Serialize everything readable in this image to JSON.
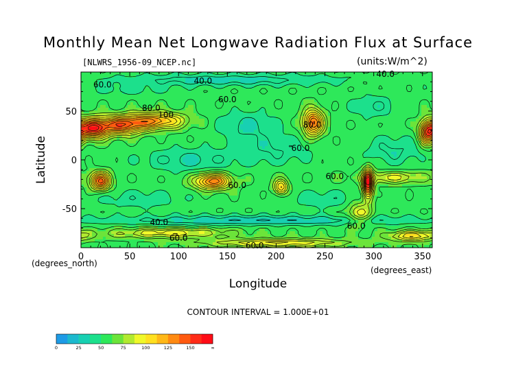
{
  "chart_data": {
    "type": "heatmap",
    "title": "Monthly Mean Net Longwave Radiation Flux at Surface",
    "source_file": "[NLWRS_1956-09_NCEP.nc]",
    "units": "(units:W/m^2)",
    "xlabel": "Longitude",
    "ylabel": "Latitude",
    "x_units_note": "(degrees_east)",
    "y_units_note": "(degrees_north)",
    "xlim": [
      0,
      360
    ],
    "ylim": [
      -90,
      90
    ],
    "x_ticks": [
      0,
      50,
      100,
      150,
      200,
      250,
      300,
      350
    ],
    "y_ticks": [
      -50,
      0,
      50
    ],
    "contour_interval_text": "CONTOUR INTERVAL = 1.000E+01",
    "contour_labels": [
      {
        "text": "60.0",
        "lon": 22,
        "lat": 77
      },
      {
        "text": "40.0",
        "lon": 125,
        "lat": 81
      },
      {
        "text": "60.0",
        "lon": 150,
        "lat": 62
      },
      {
        "text": "80.0",
        "lon": 72,
        "lat": 53
      },
      {
        "text": "100",
        "lon": 87,
        "lat": 46
      },
      {
        "text": "60.0",
        "lon": 225,
        "lat": 12
      },
      {
        "text": "80.0",
        "lon": 237,
        "lat": 36
      },
      {
        "text": "60.0",
        "lon": 160,
        "lat": -26
      },
      {
        "text": "60.0",
        "lon": 260,
        "lat": -17
      },
      {
        "text": "40.0",
        "lon": 80,
        "lat": -64
      },
      {
        "text": "60.0",
        "lon": 100,
        "lat": -80
      },
      {
        "text": "60.0",
        "lon": 282,
        "lat": -68
      },
      {
        "text": "40.0",
        "lon": 312,
        "lat": 88
      },
      {
        "text": "60.0",
        "lon": 178,
        "lat": -88
      }
    ],
    "colorbar": {
      "tick_labels": [
        "0",
        "25",
        "50",
        "75",
        "100",
        "125",
        "150",
        "∞"
      ],
      "levels": [
        0,
        12.5,
        25,
        37.5,
        50,
        62.5,
        75,
        87.5,
        100,
        112.5,
        125,
        137.5,
        150,
        162.5
      ],
      "colors": [
        "#1e9be6",
        "#1cb9ce",
        "#18d0b2",
        "#1ce08c",
        "#2ee85a",
        "#6ce43a",
        "#b2ea30",
        "#f0f82a",
        "#ffe020",
        "#ffb818",
        "#ff8a12",
        "#ff5a10",
        "#ff2c18",
        "#ff0c16"
      ]
    },
    "field": {
      "background_value": 58,
      "features": [
        {
          "lon": 12,
          "lat": 32,
          "width_lon": 14,
          "width_lat": 10,
          "value": 95
        },
        {
          "lon": 40,
          "lat": 35,
          "width_lon": 22,
          "width_lat": 9,
          "value": 78
        },
        {
          "lon": 75,
          "lat": 40,
          "width_lon": 30,
          "width_lat": 8,
          "value": 70
        },
        {
          "lon": 238,
          "lat": 38,
          "width_lon": 10,
          "width_lat": 13,
          "value": 85
        },
        {
          "lon": 355,
          "lat": 28,
          "width_lon": 8,
          "width_lat": 12,
          "value": 85
        },
        {
          "lon": 20,
          "lat": -22,
          "width_lon": 10,
          "width_lat": 9,
          "value": 85
        },
        {
          "lon": 135,
          "lat": -22,
          "width_lon": 18,
          "width_lat": 8,
          "value": 80
        },
        {
          "lon": 205,
          "lat": -28,
          "width_lon": 7,
          "width_lat": 8,
          "value": 55
        },
        {
          "lon": 294,
          "lat": -25,
          "width_lon": 5,
          "width_lat": 15,
          "value": 105
        },
        {
          "lon": 320,
          "lat": -18,
          "width_lon": 35,
          "width_lat": 6,
          "value": 35
        },
        {
          "lon": 285,
          "lat": -55,
          "width_lon": 12,
          "width_lat": 12,
          "value": 38
        },
        {
          "lon": 110,
          "lat": 0,
          "width_lon": 50,
          "width_lat": 12,
          "value": -22
        },
        {
          "lon": 170,
          "lat": 35,
          "width_lon": 30,
          "width_lat": 15,
          "value": -22
        },
        {
          "lon": 200,
          "lat": 10,
          "width_lon": 40,
          "width_lat": 15,
          "value": -18
        },
        {
          "lon": 320,
          "lat": 10,
          "width_lon": 30,
          "width_lat": 15,
          "value": -20
        },
        {
          "lon": 300,
          "lat": 55,
          "width_lon": 25,
          "width_lat": 12,
          "value": -18
        },
        {
          "lon": 60,
          "lat": -40,
          "width_lon": 50,
          "width_lat": 10,
          "value": -15
        },
        {
          "lon": 250,
          "lat": -40,
          "width_lon": 45,
          "width_lat": 10,
          "value": -15
        },
        {
          "lon": 180,
          "lat": -62,
          "width_lon": 180,
          "width_lat": 5,
          "value": -28
        },
        {
          "lon": 90,
          "lat": -75,
          "width_lon": 60,
          "width_lat": 5,
          "value": 40
        },
        {
          "lon": 200,
          "lat": -85,
          "width_lon": 70,
          "width_lat": 4,
          "value": 45
        },
        {
          "lon": 340,
          "lat": -78,
          "width_lon": 25,
          "width_lat": 5,
          "value": 50
        },
        {
          "lon": 150,
          "lat": 82,
          "width_lon": 120,
          "width_lat": 6,
          "value": -25
        },
        {
          "lon": 50,
          "lat": 72,
          "width_lon": 50,
          "width_lat": 6,
          "value": -12
        }
      ]
    }
  }
}
